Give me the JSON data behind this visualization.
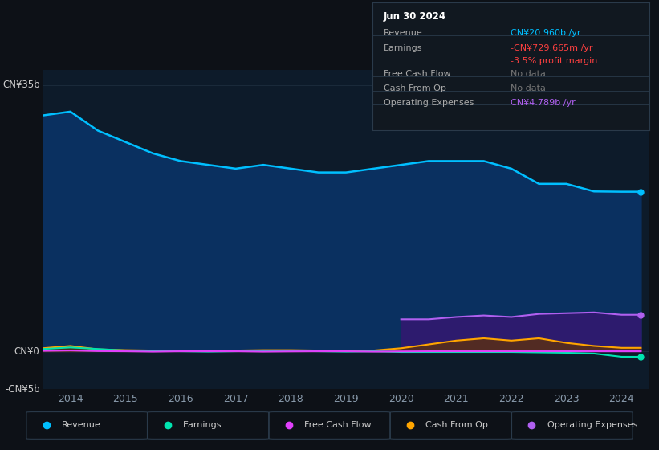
{
  "background_color": "#0d1117",
  "plot_bg_color": "#0d1b2a",
  "years": [
    2013.5,
    2014.0,
    2014.5,
    2015.0,
    2015.5,
    2016.0,
    2016.5,
    2017.0,
    2017.5,
    2018.0,
    2018.5,
    2019.0,
    2019.5,
    2020.0,
    2020.5,
    2021.0,
    2021.5,
    2022.0,
    2022.5,
    2023.0,
    2023.5,
    2024.0,
    2024.35
  ],
  "revenue": [
    31.0,
    31.5,
    29.0,
    27.5,
    26.0,
    25.0,
    24.5,
    24.0,
    24.5,
    24.0,
    23.5,
    23.5,
    24.0,
    24.5,
    25.0,
    25.0,
    25.0,
    24.0,
    22.0,
    22.0,
    21.0,
    20.96,
    20.96
  ],
  "earnings": [
    0.3,
    0.5,
    0.3,
    0.1,
    0.05,
    0.0,
    -0.05,
    0.0,
    0.1,
    0.05,
    0.0,
    -0.05,
    0.0,
    -0.1,
    -0.1,
    -0.1,
    -0.1,
    -0.1,
    -0.15,
    -0.2,
    -0.3,
    -0.73,
    -0.73
  ],
  "free_cash_flow": [
    0.05,
    0.1,
    0.02,
    0.0,
    -0.05,
    0.0,
    0.0,
    0.0,
    -0.05,
    -0.02,
    0.0,
    0.0,
    -0.05,
    -0.02,
    0.0,
    0.0,
    0.0,
    0.0,
    0.0,
    0.0,
    0.0,
    0.0,
    0.0
  ],
  "cash_from_op": [
    0.4,
    0.7,
    0.25,
    0.15,
    0.1,
    0.1,
    0.1,
    0.1,
    0.15,
    0.15,
    0.1,
    0.1,
    0.1,
    0.4,
    0.9,
    1.4,
    1.7,
    1.4,
    1.7,
    1.1,
    0.7,
    0.45,
    0.45
  ],
  "operating_expenses": [
    0.0,
    0.0,
    0.0,
    0.0,
    0.0,
    0.0,
    0.0,
    0.0,
    0.0,
    0.0,
    0.0,
    0.0,
    0.0,
    4.2,
    4.2,
    4.5,
    4.7,
    4.5,
    4.9,
    5.0,
    5.1,
    4.789,
    4.789
  ],
  "ylim_min": -5.0,
  "ylim_max": 37.0,
  "xlim_min": 2013.5,
  "xlim_max": 2024.5,
  "ytick_labels": [
    "CN¥35b",
    "CN¥0",
    "-CN¥5b"
  ],
  "ytick_values": [
    35.0,
    0.0,
    -5.0
  ],
  "xtick_labels": [
    "2014",
    "2015",
    "2016",
    "2017",
    "2018",
    "2019",
    "2020",
    "2021",
    "2022",
    "2023",
    "2024"
  ],
  "xtick_values": [
    2014,
    2015,
    2016,
    2017,
    2018,
    2019,
    2020,
    2021,
    2022,
    2023,
    2024
  ],
  "revenue_line_color": "#00bfff",
  "revenue_fill_color": "#0a3060",
  "earnings_line_color": "#00e5b0",
  "fcf_line_color": "#e040fb",
  "cashop_line_color": "#ffa500",
  "opex_line_color": "#b060f0",
  "opex_fill_color": "#2d1b6e",
  "cashop_fill_color": "#5c3010",
  "grid_color": "#1a2a3a",
  "tick_color": "#8899aa",
  "label_color": "#cccccc",
  "legend_items": [
    "Revenue",
    "Earnings",
    "Free Cash Flow",
    "Cash From Op",
    "Operating Expenses"
  ],
  "legend_colors": [
    "#00bfff",
    "#00e5b0",
    "#e040fb",
    "#ffa500",
    "#b060f0"
  ],
  "info_bg": "#111820",
  "info_border": "#2a3a4a",
  "info_title": "Jun 30 2024",
  "info_rows": [
    {
      "label": "Revenue",
      "value": "CN¥20.960b /yr",
      "value_color": "#00bfff",
      "label_color": "#aaaaaa"
    },
    {
      "label": "Earnings",
      "value": "-CN¥729.665m /yr",
      "value_color": "#ff4040",
      "label_color": "#aaaaaa"
    },
    {
      "label": "",
      "value": "-3.5% profit margin",
      "value_color": "#ff4040",
      "label_color": "#aaaaaa"
    },
    {
      "label": "Free Cash Flow",
      "value": "No data",
      "value_color": "#777777",
      "label_color": "#aaaaaa"
    },
    {
      "label": "Cash From Op",
      "value": "No data",
      "value_color": "#777777",
      "label_color": "#aaaaaa"
    },
    {
      "label": "Operating Expenses",
      "value": "CN¥4.789b /yr",
      "value_color": "#b060f0",
      "label_color": "#aaaaaa"
    }
  ]
}
